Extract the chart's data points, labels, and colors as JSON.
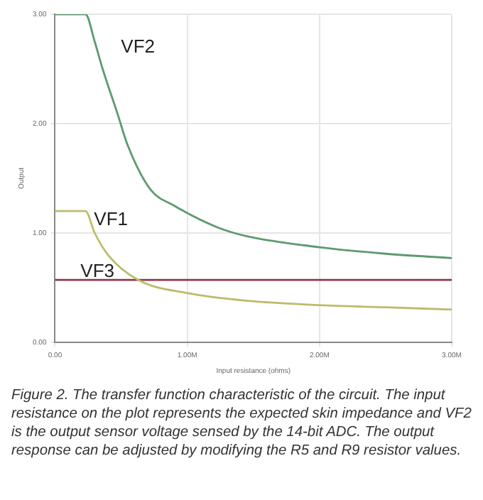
{
  "chart_data": {
    "type": "line",
    "xlabel": "Input resistance (ohms)",
    "ylabel": "Output",
    "xlim": [
      0,
      3000000
    ],
    "ylim": [
      0,
      3
    ],
    "xticks": [
      {
        "value": 0,
        "label": "0.00"
      },
      {
        "value": 1000000,
        "label": "1.00M"
      },
      {
        "value": 2000000,
        "label": "2.00M"
      },
      {
        "value": 3000000,
        "label": "3.00M"
      }
    ],
    "yticks": [
      {
        "value": 0,
        "label": "0.00"
      },
      {
        "value": 1,
        "label": "1.00"
      },
      {
        "value": 2,
        "label": "2.00"
      },
      {
        "value": 3,
        "label": "3.00"
      }
    ],
    "grid": true,
    "legend": false,
    "marker": "none",
    "line_style": "solid",
    "series": [
      {
        "name": "VF2",
        "color": "#5e9a70",
        "x": [
          0,
          230000,
          300000,
          360000,
          470000,
          550000,
          720000,
          900000,
          1230000,
          1450000,
          2000000,
          2500000,
          3000000
        ],
        "values": [
          3.0,
          3.0,
          2.75,
          2.5,
          2.1,
          1.8,
          1.4,
          1.25,
          1.05,
          0.97,
          0.87,
          0.81,
          0.77
        ]
      },
      {
        "name": "VF1",
        "color": "#bcbc6a",
        "x": [
          0,
          230000,
          300000,
          400000,
          630000,
          1000000,
          1450000,
          2000000,
          2500000,
          3000000
        ],
        "values": [
          1.2,
          1.2,
          1.0,
          0.8,
          0.57,
          0.45,
          0.38,
          0.34,
          0.32,
          0.3
        ]
      },
      {
        "name": "VF3",
        "color": "#8a3a4c",
        "x": [
          0,
          3000000
        ],
        "values": [
          0.57,
          0.57
        ]
      }
    ],
    "annotations": [
      "Figure 2. The transfer function characteristic of the circuit. The input resistance on the plot represents the expected skin impedance and VF2 is the output sensor voltage sensed by the 14-bit ADC. The output response can be adjusted by modifying the R5 and R9 resistor values."
    ]
  }
}
